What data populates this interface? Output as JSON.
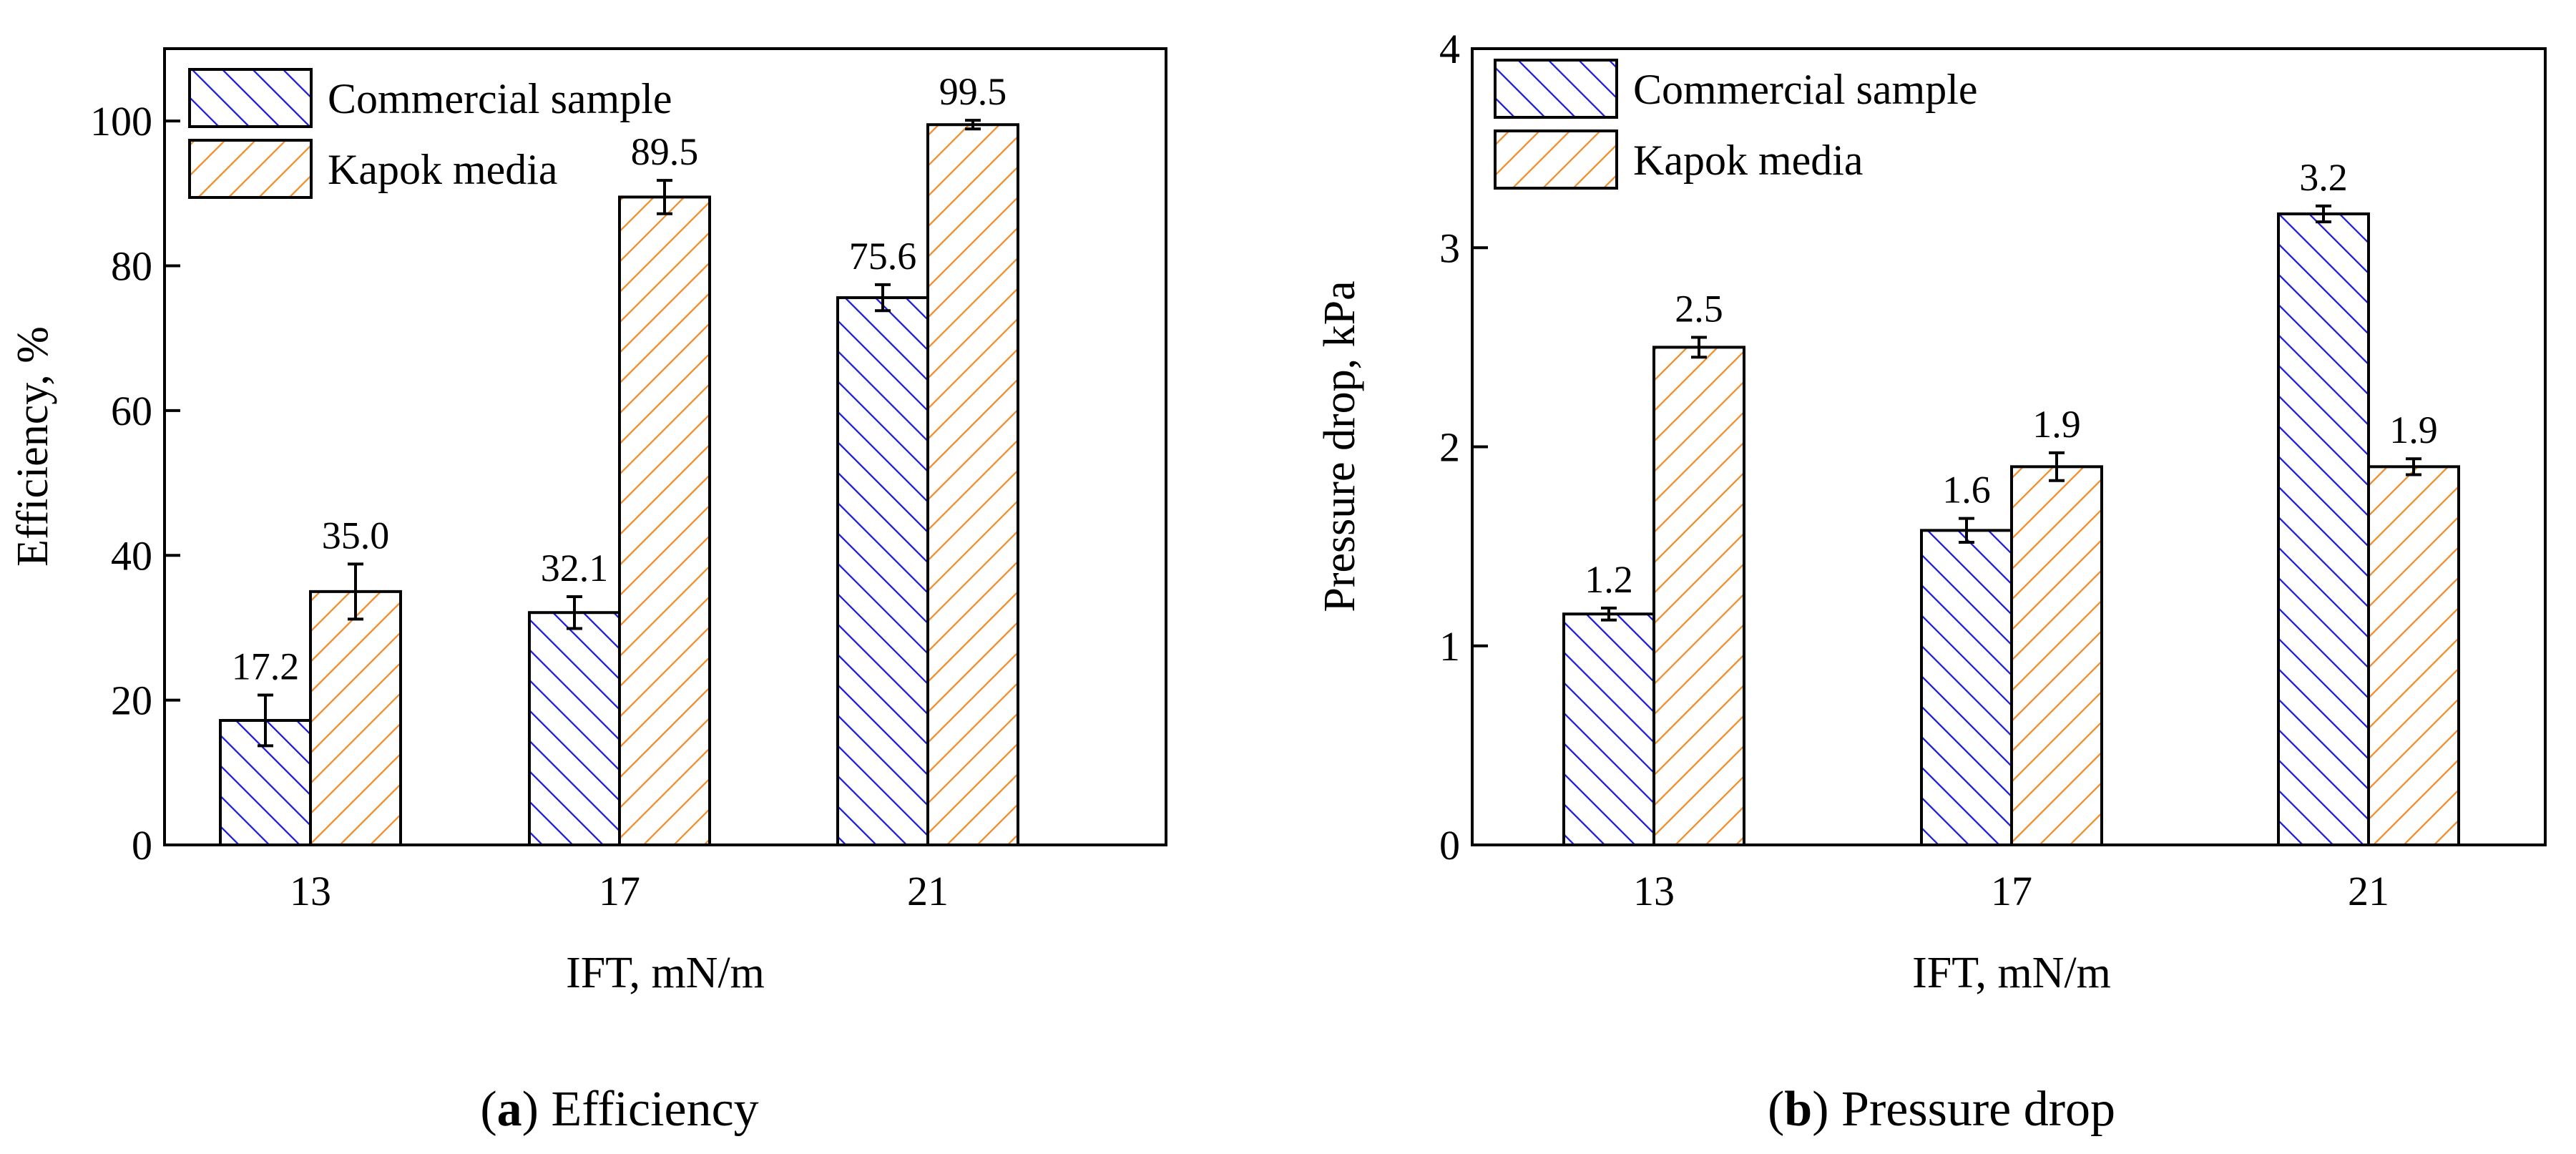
{
  "chart_data": [
    {
      "type": "bar",
      "title": "",
      "caption_letter": "a",
      "caption_text": " Efficiency",
      "xlabel": "IFT, mN/m",
      "ylabel": "Efficiency, %",
      "ylim": [
        0,
        110
      ],
      "yticks": [
        0,
        20,
        40,
        60,
        80,
        100
      ],
      "ytick_labels": [
        "0",
        "20",
        "40",
        "60",
        "80",
        "100"
      ],
      "categories": [
        "13",
        "17",
        "21"
      ],
      "legend_position": "top-left",
      "series": [
        {
          "name": "Commercial sample",
          "values": [
            17.2,
            32.1,
            75.6
          ],
          "errors": [
            3.5,
            2.2,
            1.8
          ],
          "labels": [
            "17.2",
            "32.1",
            "75.6"
          ],
          "color": "#1a1adc",
          "hatch": "backslash"
        },
        {
          "name": "Kapok media",
          "values": [
            35.0,
            89.5,
            99.5
          ],
          "errors": [
            3.8,
            2.3,
            0.6
          ],
          "labels": [
            "35.0",
            "89.5",
            "99.5"
          ],
          "color": "#f08c28",
          "hatch": "slash"
        }
      ]
    },
    {
      "type": "bar",
      "title": "",
      "caption_letter": "b",
      "caption_text": " Pressure drop",
      "xlabel": "IFT, mN/m",
      "ylabel": "Pressure drop, kPa",
      "ylim": [
        0,
        4
      ],
      "yticks": [
        0,
        1,
        2,
        3,
        4
      ],
      "ytick_labels": [
        "0",
        "1",
        "2",
        "3",
        "4"
      ],
      "categories": [
        "13",
        "17",
        "21"
      ],
      "legend_position": "top-left",
      "series": [
        {
          "name": "Commercial sample",
          "values": [
            1.16,
            1.58,
            3.17
          ],
          "errors": [
            0.03,
            0.06,
            0.04
          ],
          "labels": [
            "1.2",
            "1.6",
            "3.2"
          ],
          "color": "#1a1adc",
          "hatch": "backslash"
        },
        {
          "name": "Kapok media",
          "values": [
            2.5,
            1.9,
            1.9
          ],
          "errors": [
            0.05,
            0.07,
            0.04
          ],
          "labels": [
            "2.5",
            "1.9",
            "1.9"
          ],
          "color": "#f08c28",
          "hatch": "slash"
        }
      ]
    }
  ]
}
